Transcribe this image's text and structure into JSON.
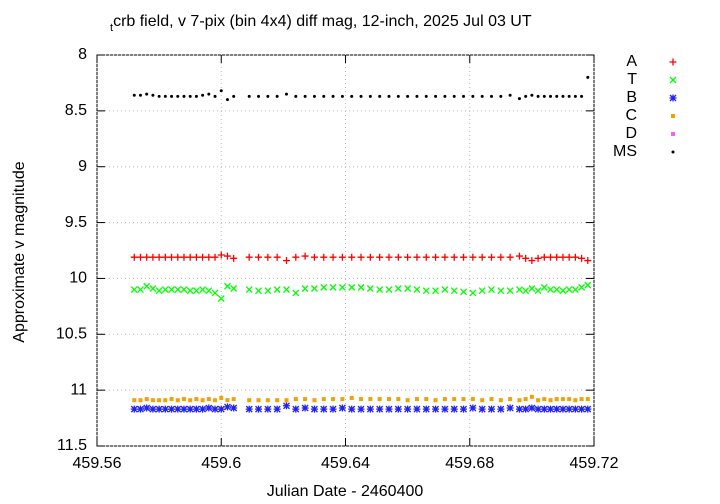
{
  "chart_data": {
    "type": "scatter",
    "title_sub": "t",
    "title": "crb field, v 7-pix (bin 4x4) diff mag, 12-inch, 2025 Jul 03 UT",
    "xlabel": "Julian Date - 2460400",
    "ylabel": "Approximate v magnitude",
    "xlim": [
      459.56,
      459.72
    ],
    "xticks": [
      459.56,
      459.6,
      459.64,
      459.68,
      459.72
    ],
    "ylim": [
      8,
      11.5
    ],
    "yticks": [
      8,
      8.5,
      9,
      9.5,
      10,
      10.5,
      11,
      11.5
    ],
    "y_reversed": true,
    "grid": true,
    "legend": "outside-right",
    "x": [
      459.572,
      459.574,
      459.576,
      459.578,
      459.58,
      459.582,
      459.584,
      459.586,
      459.588,
      459.59,
      459.592,
      459.594,
      459.596,
      459.598,
      459.6,
      459.602,
      459.604,
      459.609,
      459.612,
      459.615,
      459.618,
      459.621,
      459.624,
      459.627,
      459.63,
      459.633,
      459.636,
      459.639,
      459.642,
      459.645,
      459.648,
      459.651,
      459.654,
      459.657,
      459.66,
      459.663,
      459.666,
      459.669,
      459.672,
      459.675,
      459.678,
      459.681,
      459.684,
      459.687,
      459.69,
      459.693,
      459.696,
      459.698,
      459.7,
      459.702,
      459.704,
      459.706,
      459.708,
      459.71,
      459.712,
      459.714,
      459.716,
      459.718
    ],
    "series": [
      {
        "name": "A",
        "color": "#ff0000",
        "marker": "plus",
        "values": [
          9.81,
          9.81,
          9.81,
          9.81,
          9.81,
          9.81,
          9.81,
          9.81,
          9.81,
          9.81,
          9.81,
          9.81,
          9.81,
          9.81,
          9.79,
          9.8,
          9.82,
          9.81,
          9.81,
          9.81,
          9.81,
          9.84,
          9.81,
          9.8,
          9.81,
          9.81,
          9.81,
          9.81,
          9.81,
          9.81,
          9.81,
          9.81,
          9.81,
          9.81,
          9.81,
          9.81,
          9.81,
          9.81,
          9.81,
          9.81,
          9.81,
          9.81,
          9.81,
          9.81,
          9.81,
          9.81,
          9.8,
          9.82,
          9.84,
          9.82,
          9.81,
          9.81,
          9.81,
          9.81,
          9.81,
          9.81,
          9.82,
          9.84
        ]
      },
      {
        "name": "T",
        "color": "#00ff00",
        "marker": "cross",
        "values": [
          10.1,
          10.1,
          10.07,
          10.09,
          10.11,
          10.1,
          10.1,
          10.1,
          10.1,
          10.11,
          10.11,
          10.1,
          10.11,
          10.13,
          10.18,
          10.07,
          10.09,
          10.1,
          10.11,
          10.11,
          10.1,
          10.1,
          10.13,
          10.09,
          10.09,
          10.08,
          10.08,
          10.08,
          10.08,
          10.08,
          10.09,
          10.1,
          10.1,
          10.09,
          10.09,
          10.1,
          10.11,
          10.11,
          10.1,
          10.11,
          10.12,
          10.13,
          10.11,
          10.1,
          10.11,
          10.11,
          10.1,
          10.11,
          10.09,
          10.11,
          10.08,
          10.1,
          10.1,
          10.11,
          10.1,
          10.1,
          10.08,
          10.06
        ]
      },
      {
        "name": "B",
        "color": "#2222ee",
        "marker": "star",
        "values": [
          11.17,
          11.17,
          11.16,
          11.17,
          11.17,
          11.17,
          11.17,
          11.17,
          11.17,
          11.17,
          11.17,
          11.17,
          11.16,
          11.17,
          11.17,
          11.15,
          11.16,
          11.17,
          11.17,
          11.17,
          11.17,
          11.14,
          11.17,
          11.16,
          11.17,
          11.17,
          11.17,
          11.16,
          11.17,
          11.17,
          11.17,
          11.17,
          11.17,
          11.17,
          11.17,
          11.17,
          11.17,
          11.17,
          11.17,
          11.17,
          11.17,
          11.16,
          11.17,
          11.17,
          11.17,
          11.16,
          11.17,
          11.17,
          11.16,
          11.17,
          11.17,
          11.17,
          11.17,
          11.17,
          11.17,
          11.17,
          11.17,
          11.17
        ]
      },
      {
        "name": "C",
        "color": "#f5a000",
        "marker": "square",
        "values": [
          11.09,
          11.09,
          11.08,
          11.09,
          11.09,
          11.09,
          11.08,
          11.09,
          11.08,
          11.09,
          11.08,
          11.09,
          11.08,
          11.09,
          11.07,
          11.09,
          11.08,
          11.09,
          11.09,
          11.09,
          11.09,
          11.09,
          11.08,
          11.08,
          11.09,
          11.08,
          11.08,
          11.08,
          11.07,
          11.08,
          11.08,
          11.08,
          11.08,
          11.08,
          11.09,
          11.08,
          11.08,
          11.09,
          11.08,
          11.08,
          11.08,
          11.08,
          11.09,
          11.08,
          11.09,
          11.08,
          11.09,
          11.08,
          11.06,
          11.09,
          11.08,
          11.09,
          11.08,
          11.08,
          11.08,
          11.09,
          11.08,
          11.08
        ]
      },
      {
        "name": "D",
        "color": "#ee66ee",
        "marker": "square",
        "values": [
          null,
          null,
          null,
          null,
          null,
          null,
          null,
          null,
          null,
          null,
          null,
          null,
          null,
          null,
          null,
          null,
          null,
          null,
          null,
          null,
          null,
          null,
          null,
          null,
          null,
          null,
          null,
          null,
          null,
          null,
          null,
          null,
          null,
          null,
          null,
          null,
          null,
          null,
          null,
          null,
          null,
          null,
          null,
          null,
          null,
          null,
          null,
          null,
          null,
          null,
          null,
          null,
          null,
          null,
          null,
          null,
          null,
          null
        ]
      },
      {
        "name": "MS",
        "color": "#000000",
        "marker": "dot",
        "values": [
          8.36,
          8.36,
          8.35,
          8.36,
          8.37,
          8.37,
          8.37,
          8.37,
          8.37,
          8.37,
          8.37,
          8.36,
          8.35,
          8.37,
          8.32,
          8.4,
          8.37,
          8.37,
          8.37,
          8.37,
          8.37,
          8.35,
          8.37,
          8.37,
          8.37,
          8.37,
          8.37,
          8.37,
          8.37,
          8.37,
          8.37,
          8.37,
          8.37,
          8.37,
          8.37,
          8.37,
          8.37,
          8.37,
          8.37,
          8.37,
          8.37,
          8.37,
          8.37,
          8.37,
          8.37,
          8.36,
          8.39,
          8.37,
          8.36,
          8.37,
          8.37,
          8.37,
          8.37,
          8.37,
          8.37,
          8.37,
          8.37,
          8.2
        ]
      }
    ]
  }
}
